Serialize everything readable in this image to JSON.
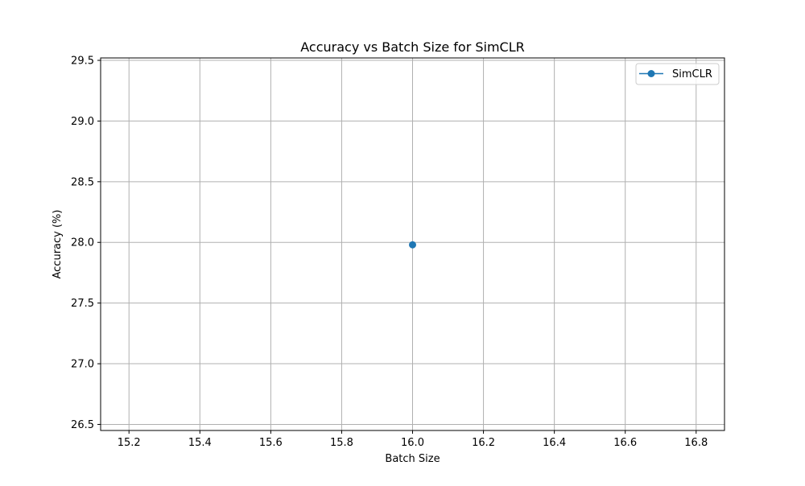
{
  "chart_data": {
    "type": "line",
    "title": "Accuracy vs Batch Size for SimCLR",
    "xlabel": "Batch Size",
    "ylabel": "Accuracy (%)",
    "xlim": [
      15.12,
      16.88
    ],
    "ylim": [
      26.45,
      29.52
    ],
    "xticks": [
      15.2,
      15.4,
      15.6,
      15.8,
      16.0,
      16.2,
      16.4,
      16.6,
      16.8
    ],
    "xtick_labels": [
      "15.2",
      "15.4",
      "15.6",
      "15.8",
      "16.0",
      "16.2",
      "16.4",
      "16.6",
      "16.8"
    ],
    "yticks": [
      26.5,
      27.0,
      27.5,
      28.0,
      28.5,
      29.0,
      29.5
    ],
    "ytick_labels": [
      "26.5",
      "27.0",
      "27.5",
      "28.0",
      "28.5",
      "29.0",
      "29.5"
    ],
    "grid": true,
    "legend": "top-right",
    "series": [
      {
        "name": "SimCLR",
        "color": "#1f77b4",
        "marker": "circle",
        "x": [
          16
        ],
        "y": [
          27.98
        ]
      }
    ]
  }
}
